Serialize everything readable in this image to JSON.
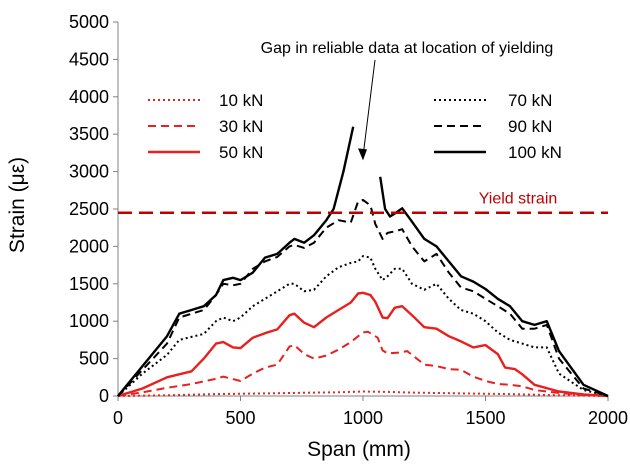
{
  "chart_data": {
    "type": "line",
    "xlabel": "Span (mm)",
    "ylabel": "Strain (με)",
    "xlim": [
      0,
      2000
    ],
    "ylim": [
      0,
      5000
    ],
    "x_ticks": [
      "0",
      "500",
      "1000",
      "1500",
      "2000"
    ],
    "y_ticks": [
      "0",
      "500",
      "1000",
      "1500",
      "2000",
      "2500",
      "3000",
      "3500",
      "4000",
      "4500",
      "5000"
    ],
    "grid": false,
    "legend_left": [
      {
        "label": "10 kN",
        "series": 0
      },
      {
        "label": "30 kN",
        "series": 1
      },
      {
        "label": "50 kN",
        "series": 2
      }
    ],
    "legend_right": [
      {
        "label": "70 kN",
        "series": 3
      },
      {
        "label": "90 kN",
        "series": 4
      },
      {
        "label": "100 kN",
        "series": 5
      }
    ],
    "series": [
      {
        "name": "10 kN",
        "color": "#e8201f",
        "dash": "dot",
        "x": [
          0,
          200,
          400,
          600,
          800,
          900,
          1000,
          1100,
          1200,
          1400,
          1600,
          1800,
          2000
        ],
        "y": [
          0,
          10,
          25,
          35,
          45,
          50,
          60,
          55,
          45,
          35,
          25,
          10,
          0
        ]
      },
      {
        "name": "30 kN",
        "color": "#e8201f",
        "dash": "dash",
        "x": [
          0,
          100,
          200,
          300,
          400,
          430,
          500,
          550,
          600,
          650,
          700,
          720,
          760,
          800,
          850,
          900,
          950,
          1000,
          1020,
          1060,
          1080,
          1100,
          1150,
          1180,
          1200,
          1250,
          1300,
          1350,
          1400,
          1450,
          1500,
          1550,
          1600,
          1650,
          1700,
          1800,
          1900,
          2000
        ],
        "y": [
          0,
          50,
          110,
          160,
          230,
          260,
          200,
          300,
          380,
          420,
          660,
          680,
          560,
          500,
          540,
          620,
          720,
          850,
          860,
          780,
          610,
          570,
          580,
          600,
          550,
          420,
          400,
          360,
          350,
          260,
          200,
          160,
          150,
          130,
          80,
          40,
          15,
          0
        ]
      },
      {
        "name": "50 kN",
        "color": "#e8201f",
        "dash": "solid",
        "x": [
          0,
          100,
          200,
          300,
          350,
          400,
          430,
          470,
          500,
          550,
          600,
          650,
          700,
          720,
          760,
          800,
          850,
          900,
          950,
          980,
          1000,
          1030,
          1050,
          1080,
          1100,
          1130,
          1160,
          1200,
          1250,
          1300,
          1350,
          1400,
          1450,
          1500,
          1550,
          1580,
          1620,
          1650,
          1700,
          1800,
          1900,
          2000
        ],
        "y": [
          0,
          100,
          250,
          330,
          500,
          700,
          720,
          650,
          640,
          780,
          840,
          890,
          1080,
          1100,
          980,
          920,
          1050,
          1150,
          1250,
          1370,
          1380,
          1350,
          1260,
          1050,
          1040,
          1180,
          1200,
          1080,
          920,
          900,
          800,
          730,
          650,
          680,
          560,
          380,
          360,
          290,
          150,
          60,
          20,
          0
        ]
      },
      {
        "name": "70 kN",
        "color": "#000000",
        "dash": "dot",
        "x": [
          0,
          100,
          200,
          250,
          300,
          350,
          400,
          430,
          470,
          500,
          550,
          600,
          650,
          700,
          720,
          760,
          800,
          850,
          900,
          950,
          980,
          1000,
          1030,
          1050,
          1080,
          1100,
          1130,
          1160,
          1200,
          1250,
          1300,
          1350,
          1400,
          1450,
          1500,
          1550,
          1600,
          1650,
          1700,
          1750,
          1800,
          1900,
          2000
        ],
        "y": [
          0,
          300,
          550,
          750,
          790,
          830,
          1000,
          1050,
          1000,
          1050,
          1200,
          1300,
          1400,
          1500,
          1500,
          1400,
          1420,
          1600,
          1720,
          1780,
          1800,
          1870,
          1850,
          1700,
          1550,
          1600,
          1700,
          1700,
          1500,
          1420,
          1500,
          1300,
          1150,
          1100,
          1000,
          850,
          750,
          700,
          650,
          650,
          300,
          80,
          0
        ]
      },
      {
        "name": "90 kN",
        "color": "#000000",
        "dash": "dash",
        "x": [
          0,
          100,
          200,
          250,
          300,
          350,
          400,
          430,
          470,
          500,
          550,
          600,
          650,
          700,
          720,
          760,
          800,
          850,
          900,
          950,
          980,
          1000,
          1030,
          1050,
          1080,
          1100,
          1130,
          1160,
          1200,
          1250,
          1300,
          1350,
          1400,
          1450,
          1500,
          1550,
          1600,
          1650,
          1700,
          1750,
          1800,
          1900,
          2000
        ],
        "y": [
          0,
          350,
          700,
          1050,
          1100,
          1150,
          1350,
          1500,
          1480,
          1500,
          1700,
          1800,
          1860,
          2000,
          2020,
          1980,
          2050,
          2250,
          2350,
          2320,
          2600,
          2620,
          2550,
          2300,
          2100,
          2180,
          2200,
          2230,
          2000,
          1800,
          1900,
          1650,
          1450,
          1400,
          1300,
          1200,
          1100,
          900,
          900,
          950,
          500,
          100,
          0
        ]
      },
      {
        "name": "100 kN",
        "color": "#000000",
        "dash": "solid",
        "x": [
          0,
          100,
          200,
          250,
          300,
          350,
          400,
          430,
          470,
          500,
          550,
          600,
          650,
          700,
          720,
          760,
          800,
          850,
          880,
          900,
          920,
          940,
          960,
          null,
          1070,
          1090,
          1110,
          1130,
          1160,
          1200,
          1250,
          1300,
          1350,
          1400,
          1450,
          1500,
          1550,
          1600,
          1650,
          1700,
          1750,
          1800,
          1900,
          2000
        ],
        "y": [
          0,
          400,
          800,
          1100,
          1150,
          1200,
          1350,
          1550,
          1580,
          1550,
          1650,
          1850,
          1900,
          2050,
          2100,
          2050,
          2150,
          2350,
          2500,
          2750,
          3000,
          3300,
          3600,
          null,
          2930,
          2500,
          2400,
          2440,
          2510,
          2330,
          2100,
          2000,
          1800,
          1600,
          1530,
          1430,
          1300,
          1200,
          1000,
          950,
          1000,
          600,
          150,
          0
        ]
      }
    ],
    "annotations": {
      "yield_label": "Yield strain",
      "yield_value": 2450,
      "yield_color": "#c00000",
      "gap_note": "Gap in reliable data at location of yielding",
      "arrow_to": [
        1000,
        3150
      ]
    }
  }
}
